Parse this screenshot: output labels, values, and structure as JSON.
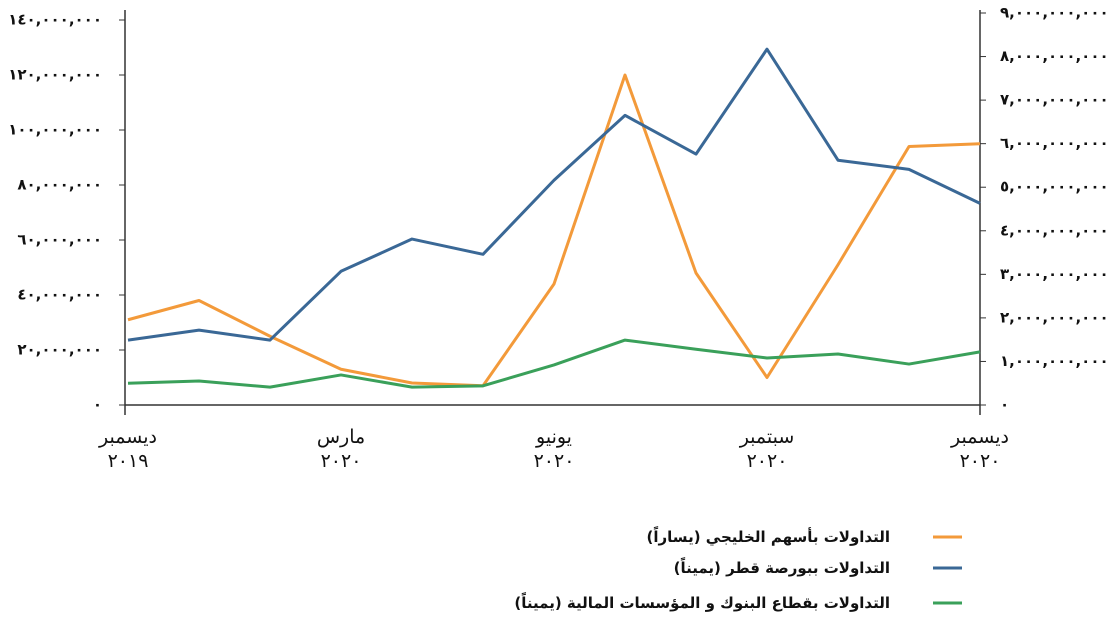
{
  "chart_data": {
    "type": "line",
    "categories": [
      "ديسمبر ٢٠١٩",
      null,
      null,
      "مارس ٢٠٢٠",
      null,
      null,
      "يونيو ٢٠٢٠",
      null,
      null,
      "سبتمبر ٢٠٢٠",
      null,
      null,
      "ديسمبر ٢٠٢٠"
    ],
    "series": [
      {
        "name": "التداولات بأسهم الخليجي (يساراً)",
        "color": "#f39a3a",
        "values": [
          31000000,
          38000000,
          25000000,
          13000000,
          8000000,
          7000000,
          44000000,
          120000000,
          48000000,
          10000000,
          51000000,
          94000000,
          95000000
        ]
      },
      {
        "name": "التداولات ببورصة قطر  (يميناً)",
        "color": "#3a6896",
        "axis": "y2",
        "values": [
          1490000000,
          1720000000,
          1490000000,
          3070000000,
          3810000000,
          3460000000,
          5160000000,
          6650000000,
          5760000000,
          8170000000,
          5620000000,
          5410000000,
          4630000000
        ]
      },
      {
        "name": "التداولات بقطاع البنوك و المؤسسات المالية (يميناً)",
        "color": "#3aa05a",
        "axis": "y2",
        "values": [
          500000000,
          550000000,
          410000000,
          690000000,
          410000000,
          440000000,
          920000000,
          1490000000,
          1280000000,
          1080000000,
          1170000000,
          940000000,
          1220000000
        ]
      }
    ],
    "ylim": [
      0,
      140000000
    ],
    "yticks": [
      {
        "value": 0,
        "label": "٠"
      },
      {
        "value": 20000000,
        "label": "٢٠,٠٠٠,٠٠٠"
      },
      {
        "value": 40000000,
        "label": "٤٠,٠٠٠,٠٠٠"
      },
      {
        "value": 60000000,
        "label": "٦٠,٠٠٠,٠٠٠"
      },
      {
        "value": 80000000,
        "label": "٨٠,٠٠٠,٠٠٠"
      },
      {
        "value": 100000000,
        "label": "١٠٠,٠٠٠,٠٠٠"
      },
      {
        "value": 120000000,
        "label": "١٢٠,٠٠٠,٠٠٠"
      },
      {
        "value": 140000000,
        "label": "١٤٠,٠٠٠,٠٠٠"
      }
    ],
    "y2lim": [
      0,
      9000000000
    ],
    "y2ticks": [
      {
        "value": 0,
        "label": "٠"
      },
      {
        "value": 1000000000,
        "label": "١,٠٠٠,٠٠٠,٠٠٠"
      },
      {
        "value": 2000000000,
        "label": "٢,٠٠٠,٠٠٠,٠٠٠"
      },
      {
        "value": 3000000000,
        "label": "٣,٠٠٠,٠٠٠,٠٠٠"
      },
      {
        "value": 4000000000,
        "label": "٤,٠٠٠,٠٠٠,٠٠٠"
      },
      {
        "value": 5000000000,
        "label": "٥,٠٠٠,٠٠٠,٠٠٠"
      },
      {
        "value": 6000000000,
        "label": "٦,٠٠٠,٠٠٠,٠٠٠"
      },
      {
        "value": 7000000000,
        "label": "٧,٠٠٠,٠٠٠,٠٠٠"
      },
      {
        "value": 8000000000,
        "label": "٨,٠٠٠,٠٠٠,٠٠٠"
      },
      {
        "value": 9000000000,
        "label": "٩,٠٠٠,٠٠٠,٠٠٠"
      }
    ],
    "legend": "bottom"
  }
}
